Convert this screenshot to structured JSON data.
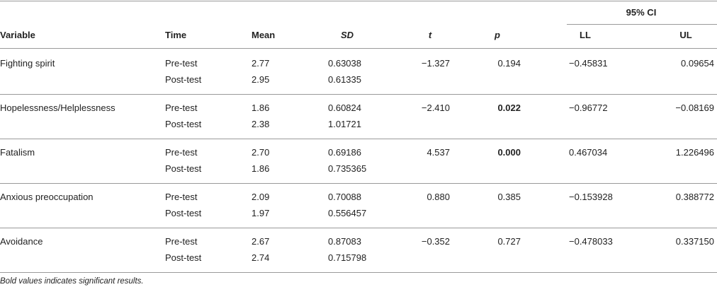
{
  "table": {
    "group_header": "95% CI",
    "columns": [
      "Variable",
      "Time",
      "Mean",
      "SD",
      "t",
      "p",
      "LL",
      "UL"
    ],
    "rows": [
      {
        "variable": "Fighting spirit",
        "t": "−1.327",
        "p": "0.194",
        "p_bold": false,
        "ll": "−0.45831",
        "ul": "0.09654",
        "times": [
          {
            "time": "Pre-test",
            "mean": "2.77",
            "sd": "0.63038"
          },
          {
            "time": "Post-test",
            "mean": "2.95",
            "sd": "0.61335"
          }
        ]
      },
      {
        "variable": "Hopelessness/Helplessness",
        "t": "−2.410",
        "p": "0.022",
        "p_bold": true,
        "ll": "−0.96772",
        "ul": "−0.08169",
        "times": [
          {
            "time": "Pre-test",
            "mean": "1.86",
            "sd": "0.60824"
          },
          {
            "time": "Post-test",
            "mean": "2.38",
            "sd": "1.01721"
          }
        ]
      },
      {
        "variable": "Fatalism",
        "t": "4.537",
        "p": "0.000",
        "p_bold": true,
        "ll": "0.467034",
        "ul": "1.226496",
        "times": [
          {
            "time": "Pre-test",
            "mean": "2.70",
            "sd": "0.69186"
          },
          {
            "time": "Post-test",
            "mean": "1.86",
            "sd": "0.735365"
          }
        ]
      },
      {
        "variable": "Anxious preoccupation",
        "t": "0.880",
        "p": "0.385",
        "p_bold": false,
        "ll": "−0.153928",
        "ul": "0.388772",
        "times": [
          {
            "time": "Pre-test",
            "mean": "2.09",
            "sd": "0.70088"
          },
          {
            "time": "Post-test",
            "mean": "1.97",
            "sd": "0.556457"
          }
        ]
      },
      {
        "variable": "Avoidance",
        "t": "−0.352",
        "p": "0.727",
        "p_bold": false,
        "ll": "−0.478033",
        "ul": "0.337150",
        "times": [
          {
            "time": "Pre-test",
            "mean": "2.67",
            "sd": "0.87083"
          },
          {
            "time": "Post-test",
            "mean": "2.74",
            "sd": "0.715798"
          }
        ]
      }
    ],
    "footnote": "Bold values indicates significant results."
  }
}
